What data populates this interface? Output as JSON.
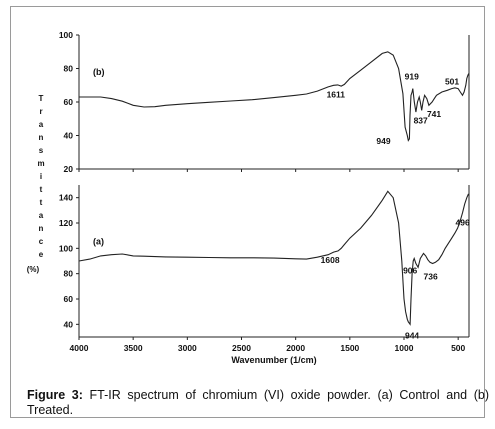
{
  "chart_data": [
    {
      "type": "line",
      "panel_label": "(b)",
      "xlabel": "Wavenumber (1/cm)",
      "ylabel": "Transmittance (%)",
      "xlim": [
        4000,
        400
      ],
      "ylim": [
        20,
        100
      ],
      "y_ticks": [
        20,
        40,
        60,
        80,
        100
      ],
      "x_ticks": [
        4000,
        3500,
        3000,
        2500,
        2000,
        1500,
        1000,
        500
      ],
      "series": [
        {
          "points": [
            [
              4000,
              63
            ],
            [
              3900,
              63
            ],
            [
              3800,
              63
            ],
            [
              3700,
              62
            ],
            [
              3600,
              60.5
            ],
            [
              3500,
              58
            ],
            [
              3400,
              57
            ],
            [
              3300,
              57.2
            ],
            [
              3200,
              58
            ],
            [
              3000,
              59
            ],
            [
              2800,
              59.8
            ],
            [
              2600,
              60.6
            ],
            [
              2400,
              61.4
            ],
            [
              2200,
              62.6
            ],
            [
              2000,
              64
            ],
            [
              1900,
              64.8
            ],
            [
              1800,
              66.5
            ],
            [
              1700,
              69
            ],
            [
              1650,
              70
            ],
            [
              1611,
              70.2
            ],
            [
              1580,
              69.5
            ],
            [
              1550,
              70.5
            ],
            [
              1500,
              74
            ],
            [
              1400,
              79
            ],
            [
              1300,
              84
            ],
            [
              1200,
              89
            ],
            [
              1150,
              90
            ],
            [
              1100,
              88
            ],
            [
              1050,
              80
            ],
            [
              1010,
              65
            ],
            [
              990,
              45
            ],
            [
              970,
              40
            ],
            [
              960,
              37
            ],
            [
              950,
              38
            ],
            [
              945,
              52
            ],
            [
              935,
              64
            ],
            [
              925,
              66
            ],
            [
              919,
              68
            ],
            [
              905,
              60
            ],
            [
              890,
              54
            ],
            [
              875,
              60
            ],
            [
              860,
              63
            ],
            [
              850,
              60
            ],
            [
              837,
              55
            ],
            [
              825,
              60
            ],
            [
              810,
              64
            ],
            [
              790,
              62
            ],
            [
              770,
              58
            ],
            [
              741,
              60
            ],
            [
              720,
              62
            ],
            [
              700,
              64
            ],
            [
              650,
              66
            ],
            [
              600,
              67
            ],
            [
              560,
              68
            ],
            [
              530,
              68.5
            ],
            [
              501,
              68
            ],
            [
              480,
              66
            ],
            [
              460,
              64
            ],
            [
              445,
              66
            ],
            [
              430,
              70
            ],
            [
              420,
              74
            ],
            [
              410,
              76
            ],
            [
              402,
              77
            ]
          ]
        }
      ],
      "annotations": [
        {
          "label": "1611",
          "x": 1611,
          "y": 70
        },
        {
          "label": "919",
          "x": 919,
          "y": 68
        },
        {
          "label": "501",
          "x": 501,
          "y": 68
        },
        {
          "label": "949",
          "x": 949,
          "y": 38
        },
        {
          "label": "837",
          "x": 837,
          "y": 55
        },
        {
          "label": "741",
          "x": 741,
          "y": 60
        }
      ]
    },
    {
      "type": "line",
      "panel_label": "(a)",
      "xlabel": "Wavenumber (1/cm)",
      "ylabel": "Transmittance (%)",
      "xlim": [
        4000,
        400
      ],
      "ylim": [
        30,
        150
      ],
      "y_ticks": [
        40,
        60,
        80,
        100,
        120,
        140
      ],
      "x_ticks": [
        4000,
        3500,
        3000,
        2500,
        2000,
        1500,
        1000,
        500
      ],
      "series": [
        {
          "points": [
            [
              4000,
              90
            ],
            [
              3900,
              91.5
            ],
            [
              3800,
              94
            ],
            [
              3700,
              95
            ],
            [
              3600,
              95.5
            ],
            [
              3500,
              94
            ],
            [
              3400,
              93.8
            ],
            [
              3300,
              93.5
            ],
            [
              3200,
              93.2
            ],
            [
              3000,
              93
            ],
            [
              2800,
              92.8
            ],
            [
              2600,
              92.5
            ],
            [
              2400,
              92.5
            ],
            [
              2200,
              92.3
            ],
            [
              2000,
              91.7
            ],
            [
              1900,
              91.5
            ],
            [
              1800,
              93
            ],
            [
              1700,
              95
            ],
            [
              1650,
              97
            ],
            [
              1608,
              98
            ],
            [
              1580,
              100
            ],
            [
              1550,
              103
            ],
            [
              1500,
              108
            ],
            [
              1400,
              116
            ],
            [
              1300,
              126
            ],
            [
              1200,
              138
            ],
            [
              1150,
              145
            ],
            [
              1100,
              140
            ],
            [
              1050,
              120
            ],
            [
              1020,
              90
            ],
            [
              1000,
              60
            ],
            [
              985,
              50
            ],
            [
              970,
              44
            ],
            [
              960,
              42
            ],
            [
              944,
              40
            ],
            [
              935,
              60
            ],
            [
              925,
              80
            ],
            [
              915,
              90
            ],
            [
              906,
              92
            ],
            [
              890,
              88
            ],
            [
              870,
              85
            ],
            [
              850,
              92
            ],
            [
              820,
              96
            ],
            [
              800,
              94
            ],
            [
              780,
              91
            ],
            [
              760,
              89
            ],
            [
              736,
              88
            ],
            [
              710,
              89
            ],
            [
              680,
              91
            ],
            [
              650,
              95
            ],
            [
              620,
              100
            ],
            [
              590,
              104
            ],
            [
              560,
              108
            ],
            [
              530,
              112
            ],
            [
              505,
              116
            ],
            [
              496,
              118
            ],
            [
              480,
              122
            ],
            [
              460,
              128
            ],
            [
              440,
              135
            ],
            [
              420,
              140
            ],
            [
              405,
              143
            ]
          ]
        }
      ],
      "annotations": [
        {
          "label": "1608",
          "x": 1608,
          "y": 98
        },
        {
          "label": "496",
          "x": 496,
          "y": 118
        },
        {
          "label": "736",
          "x": 736,
          "y": 88
        },
        {
          "label": "906",
          "x": 906,
          "y": 92
        },
        {
          "label": "944",
          "x": 944,
          "y": 40
        }
      ]
    }
  ],
  "axis": {
    "ylabel_letters": [
      "T",
      "r",
      "a",
      "n",
      "s",
      "m",
      "i",
      "t",
      "t",
      "a",
      "n",
      "c",
      "e",
      "(%)"
    ],
    "xlabel": "Wavenumber (1/cm)",
    "x_tick_labels": [
      "4000",
      "3500",
      "3000",
      "2500",
      "2000",
      "1500",
      "1000",
      "500"
    ],
    "top_y_tick_labels": [
      "20",
      "40",
      "60",
      "80",
      "100"
    ],
    "bottom_y_tick_labels": [
      "40",
      "60",
      "80",
      "100",
      "120",
      "140"
    ]
  },
  "caption": {
    "label": "Figure 3:",
    "text": " FT-IR spectrum of chromium (VI) oxide powder. (a) Control and (b) Treated."
  }
}
